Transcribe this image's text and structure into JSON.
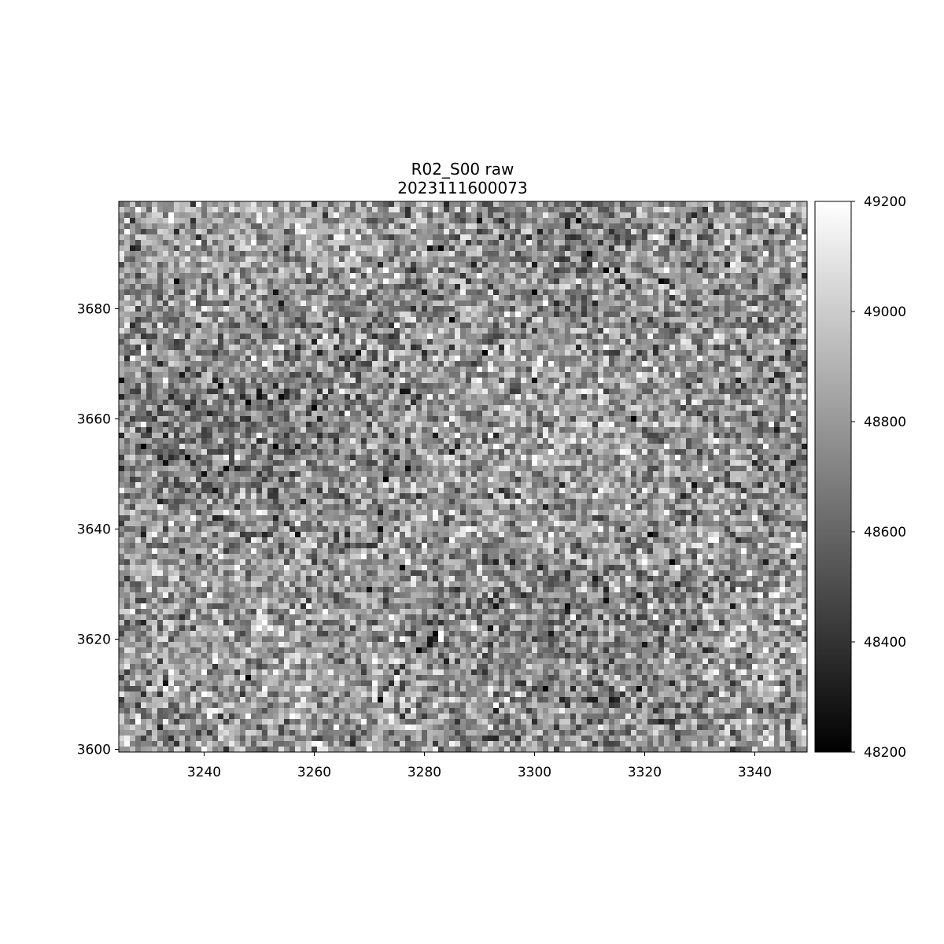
{
  "chart_data": {
    "type": "heatmap",
    "title": "R02_S00 raw",
    "subtitle": "2023111600073",
    "xlabel": "",
    "ylabel": "",
    "colormap": "gray",
    "xlim": [
      3224.5,
      3349.5
    ],
    "ylim": [
      3599.5,
      3699.5
    ],
    "x_ticks": [
      3240,
      3260,
      3280,
      3300,
      3320,
      3340
    ],
    "x_tick_labels": [
      "3240",
      "3260",
      "3280",
      "3300",
      "3320",
      "3340"
    ],
    "y_ticks": [
      3600,
      3620,
      3640,
      3660,
      3680
    ],
    "y_tick_labels": [
      "3600",
      "3620",
      "3640",
      "3660",
      "3680"
    ],
    "colorbar": {
      "range": [
        48200,
        49200
      ],
      "ticks": [
        48200,
        48400,
        48600,
        48800,
        49000,
        49200
      ],
      "tick_labels": [
        "48200",
        "48400",
        "48600",
        "48800",
        "49000",
        "49200"
      ],
      "placement": "right"
    },
    "pixels": {
      "columns": 125,
      "rows": 100,
      "distribution": "noise",
      "mean": 48780,
      "std": 180
    },
    "grid": false,
    "legend": "none"
  }
}
